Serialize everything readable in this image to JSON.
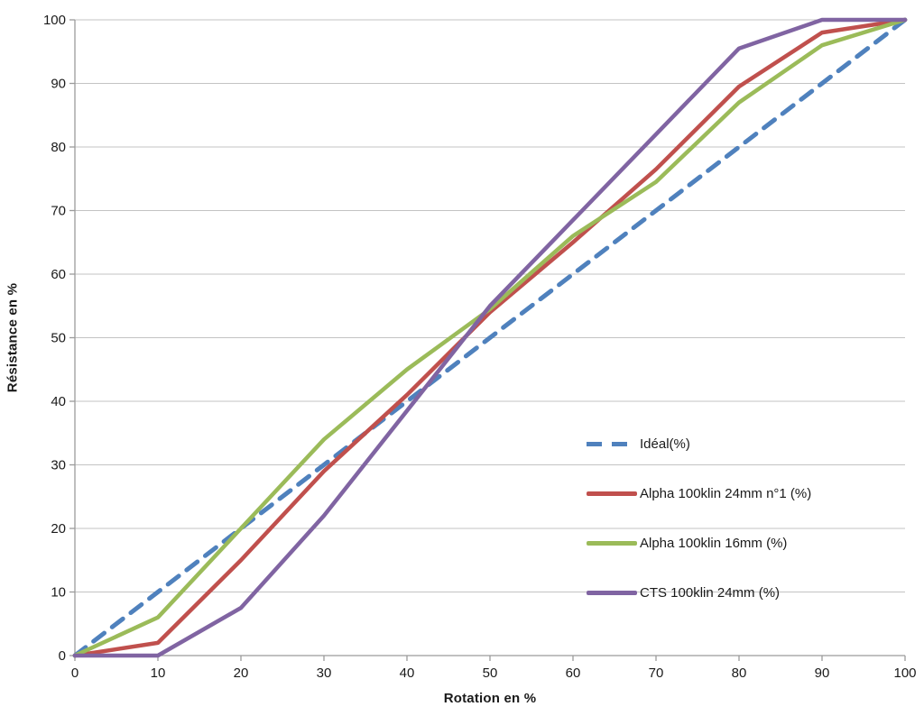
{
  "chart_data": {
    "type": "line",
    "title": "",
    "xlabel": "Rotation en %",
    "ylabel": "Résistance en %",
    "xlim": [
      0,
      100
    ],
    "ylim": [
      0,
      100
    ],
    "x_ticks": [
      0,
      10,
      20,
      30,
      40,
      50,
      60,
      70,
      80,
      90,
      100
    ],
    "y_ticks": [
      0,
      10,
      20,
      30,
      40,
      50,
      60,
      70,
      80,
      90,
      100
    ],
    "grid": "horizontal",
    "legend_position": "middle-right",
    "x": [
      0,
      10,
      20,
      30,
      40,
      50,
      60,
      70,
      80,
      90,
      100
    ],
    "series": [
      {
        "name": "Idéal(%)",
        "color": "#4F81BD",
        "dashed": true,
        "values": [
          0,
          10,
          20,
          30,
          40,
          50,
          60,
          70,
          80,
          90,
          100
        ]
      },
      {
        "name": "Alpha 100klin 24mm n°1 (%)",
        "color": "#C0504D",
        "dashed": false,
        "values": [
          0,
          2,
          15,
          29,
          41,
          54,
          65,
          76.5,
          89.5,
          98,
          100
        ]
      },
      {
        "name": "Alpha 100klin 16mm (%)",
        "color": "#9BBB59",
        "dashed": false,
        "values": [
          0,
          6,
          20,
          34,
          45,
          54.5,
          66,
          74.5,
          87,
          96,
          100
        ]
      },
      {
        "name": "CTS 100klin 24mm (%)",
        "color": "#8064A2",
        "dashed": false,
        "values": [
          0,
          0,
          7.5,
          22,
          38.5,
          55,
          68.5,
          82,
          95.5,
          100,
          100
        ]
      }
    ]
  },
  "style": {
    "gridline_color": "#C3C3C3",
    "axis_color": "#9B9B9B",
    "background": "#FFFFFF",
    "text_color": "#1a1a1a"
  }
}
